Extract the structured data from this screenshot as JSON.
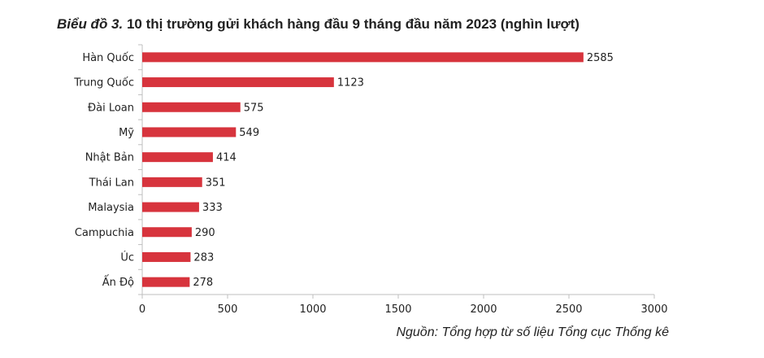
{
  "title": {
    "lead": "Biểu đồ 3.",
    "text": " 10 thị trường gửi khách hàng đầu 9 tháng đầu năm 2023 (nghìn lượt)"
  },
  "source": "Nguồn: Tổng hợp từ số liệu Tổng cục Thống kê",
  "chart_data": {
    "type": "bar",
    "orientation": "horizontal",
    "title": "Biểu đồ 3. 10 thị trường gửi khách hàng đầu 9 tháng đầu năm 2023 (nghìn lượt)",
    "categories": [
      "Hàn Quốc",
      "Trung Quốc",
      "Đài Loan",
      "Mỹ",
      "Nhật Bản",
      "Thái Lan",
      "Malaysia",
      "Campuchia",
      "Úc",
      "Ấn Độ"
    ],
    "values": [
      2585,
      1123,
      575,
      549,
      414,
      351,
      333,
      290,
      283,
      278
    ],
    "xlim": [
      0,
      3000
    ],
    "xticks": [
      0,
      500,
      1000,
      1500,
      2000,
      2500,
      3000
    ],
    "grid": false,
    "bar_color": "#d7343d"
  }
}
